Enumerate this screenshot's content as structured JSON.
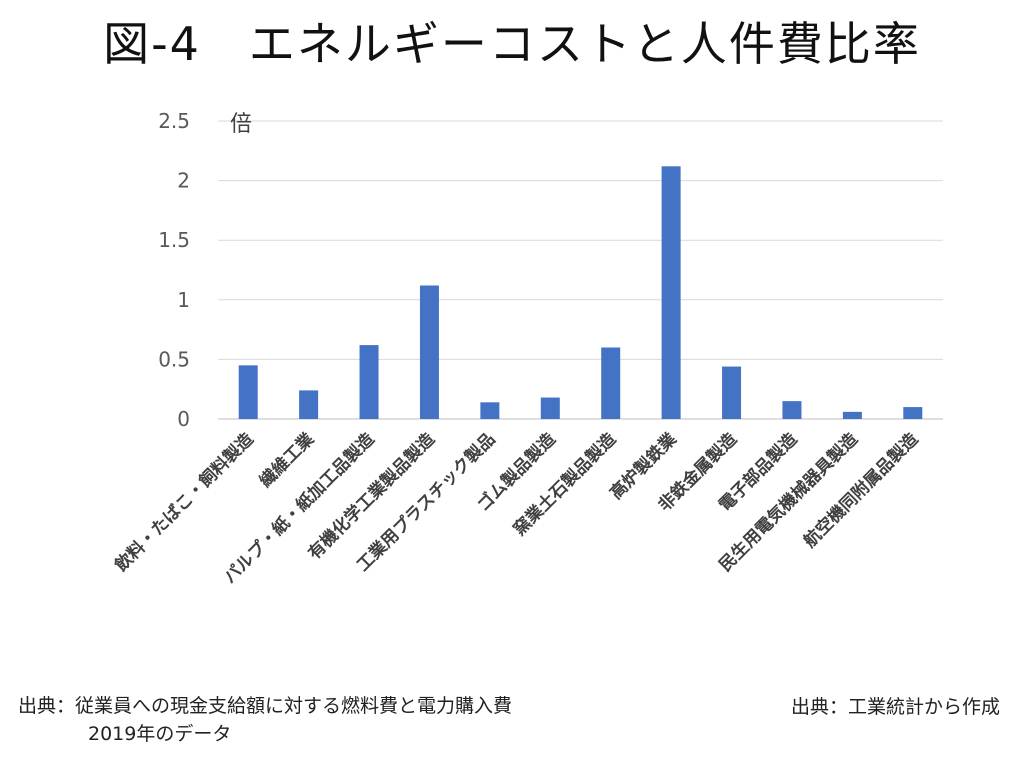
{
  "title": "図-4　エネルギーコストと人件費比率",
  "chart_data": {
    "type": "bar",
    "ylabel": "倍",
    "ylim": [
      0,
      2.5
    ],
    "yticks": [
      "0",
      "0.5",
      "1",
      "1.5",
      "2",
      "2.5"
    ],
    "grid": true,
    "bar_color": "#4472C4",
    "categories": [
      "飲料・たばこ・飼料製造",
      "繊維工業",
      "パルプ・紙・紙加工品製造",
      "有機化学工業製品製造",
      "工業用プラスチック製品",
      "ゴム製品製造",
      "窯業土石製品製造",
      "高炉製鉄業",
      "非鉄金属製造",
      "電子部品製造",
      "民生用電気機械器具製造",
      "航空機同附属品製造"
    ],
    "values": [
      0.45,
      0.24,
      0.62,
      1.12,
      0.14,
      0.18,
      0.6,
      2.12,
      0.44,
      0.15,
      0.06,
      0.1
    ]
  },
  "notes": {
    "left_line1": "出典：従業員への現金支給額に対する燃料費と電力購入費",
    "left_line2": "2019年のデータ",
    "right": "出典：工業統計から作成"
  }
}
